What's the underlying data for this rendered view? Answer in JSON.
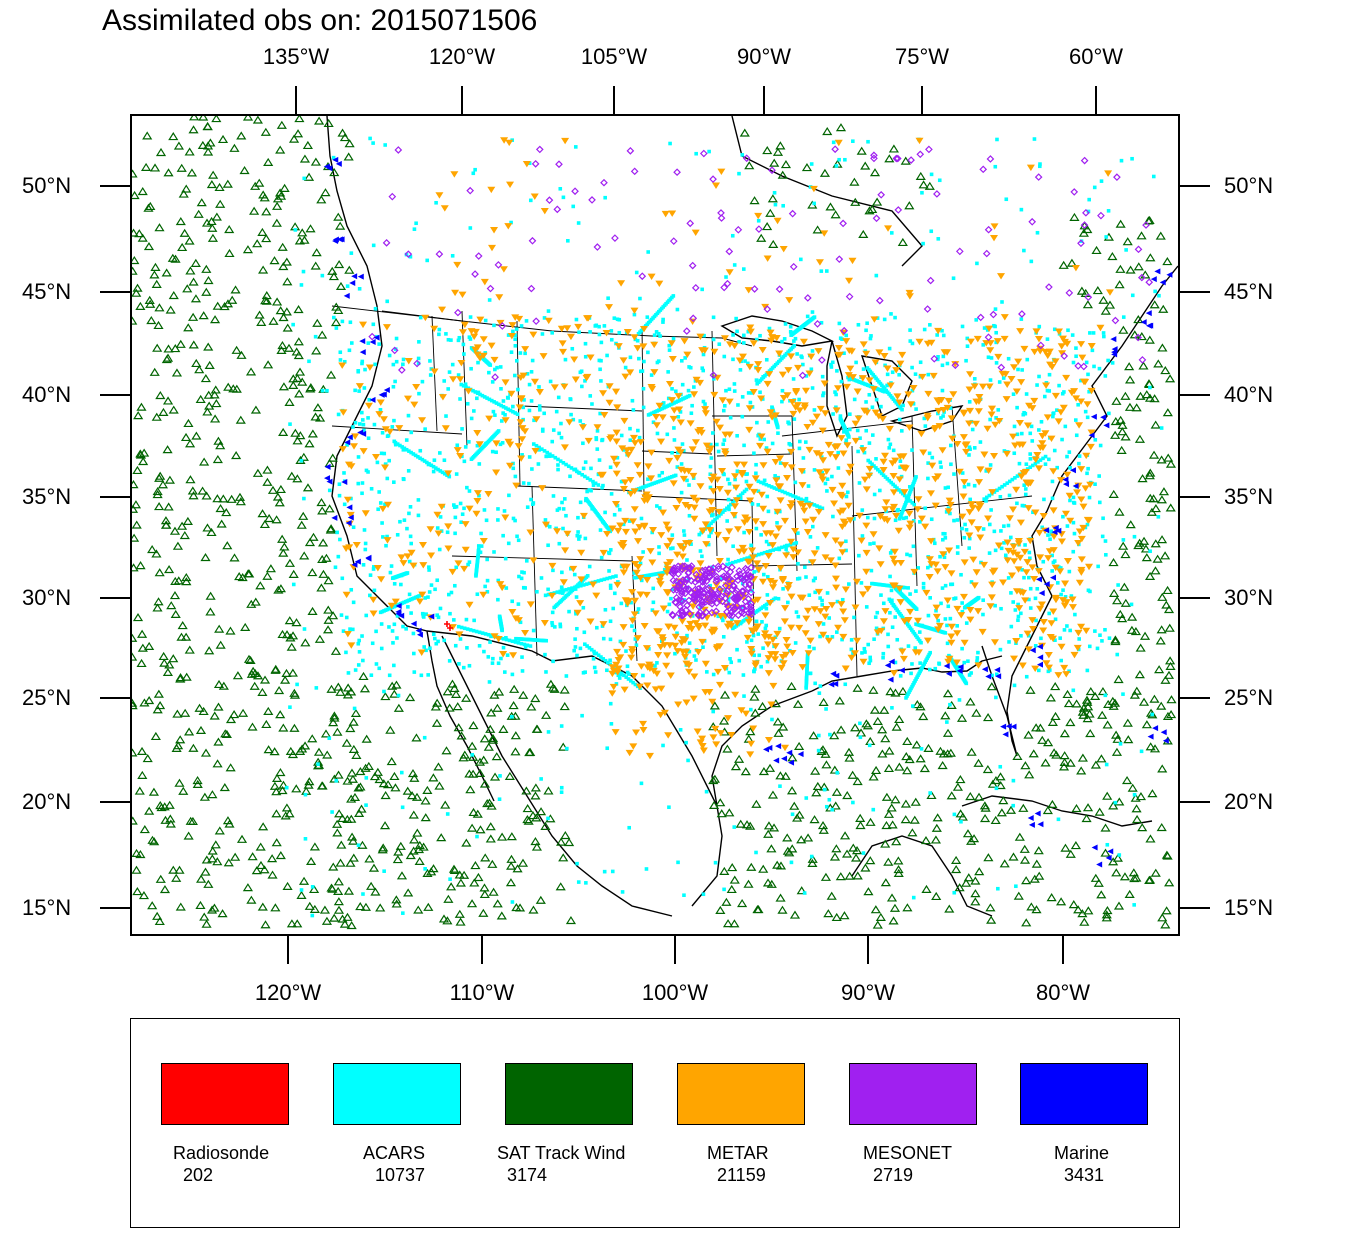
{
  "title": "Assimilated obs on: 2015071506",
  "top_lon_labels": [
    "135°W",
    "120°W",
    "105°W",
    "90°W",
    "75°W",
    "60°W"
  ],
  "bottom_lon_labels": [
    "120°W",
    "110°W",
    "100°W",
    "90°W",
    "80°W"
  ],
  "lat_labels": [
    "50°N",
    "45°N",
    "40°N",
    "35°N",
    "30°N",
    "25°N",
    "20°N",
    "15°N"
  ],
  "legend": [
    {
      "name": "Radiosonde",
      "count": "202",
      "color": "#ff0000"
    },
    {
      "name": "ACARS",
      "count": "10737",
      "color": "#00ffff"
    },
    {
      "name": "SAT Track Wind",
      "count": "3174",
      "color": "#006400"
    },
    {
      "name": "METAR",
      "count": "21159",
      "color": "#ffa500"
    },
    {
      "name": "MESONET",
      "count": "2719",
      "color": "#a020f0"
    },
    {
      "name": "Marine",
      "count": "3431",
      "color": "#0000ff"
    }
  ],
  "colors": {
    "land_outline": "#000000",
    "acars": "#00ffff",
    "sat": "#006400",
    "metar": "#ffa500",
    "mesonet": "#a020f0",
    "marine": "#0000ff",
    "radiosonde": "#ff0000"
  }
}
